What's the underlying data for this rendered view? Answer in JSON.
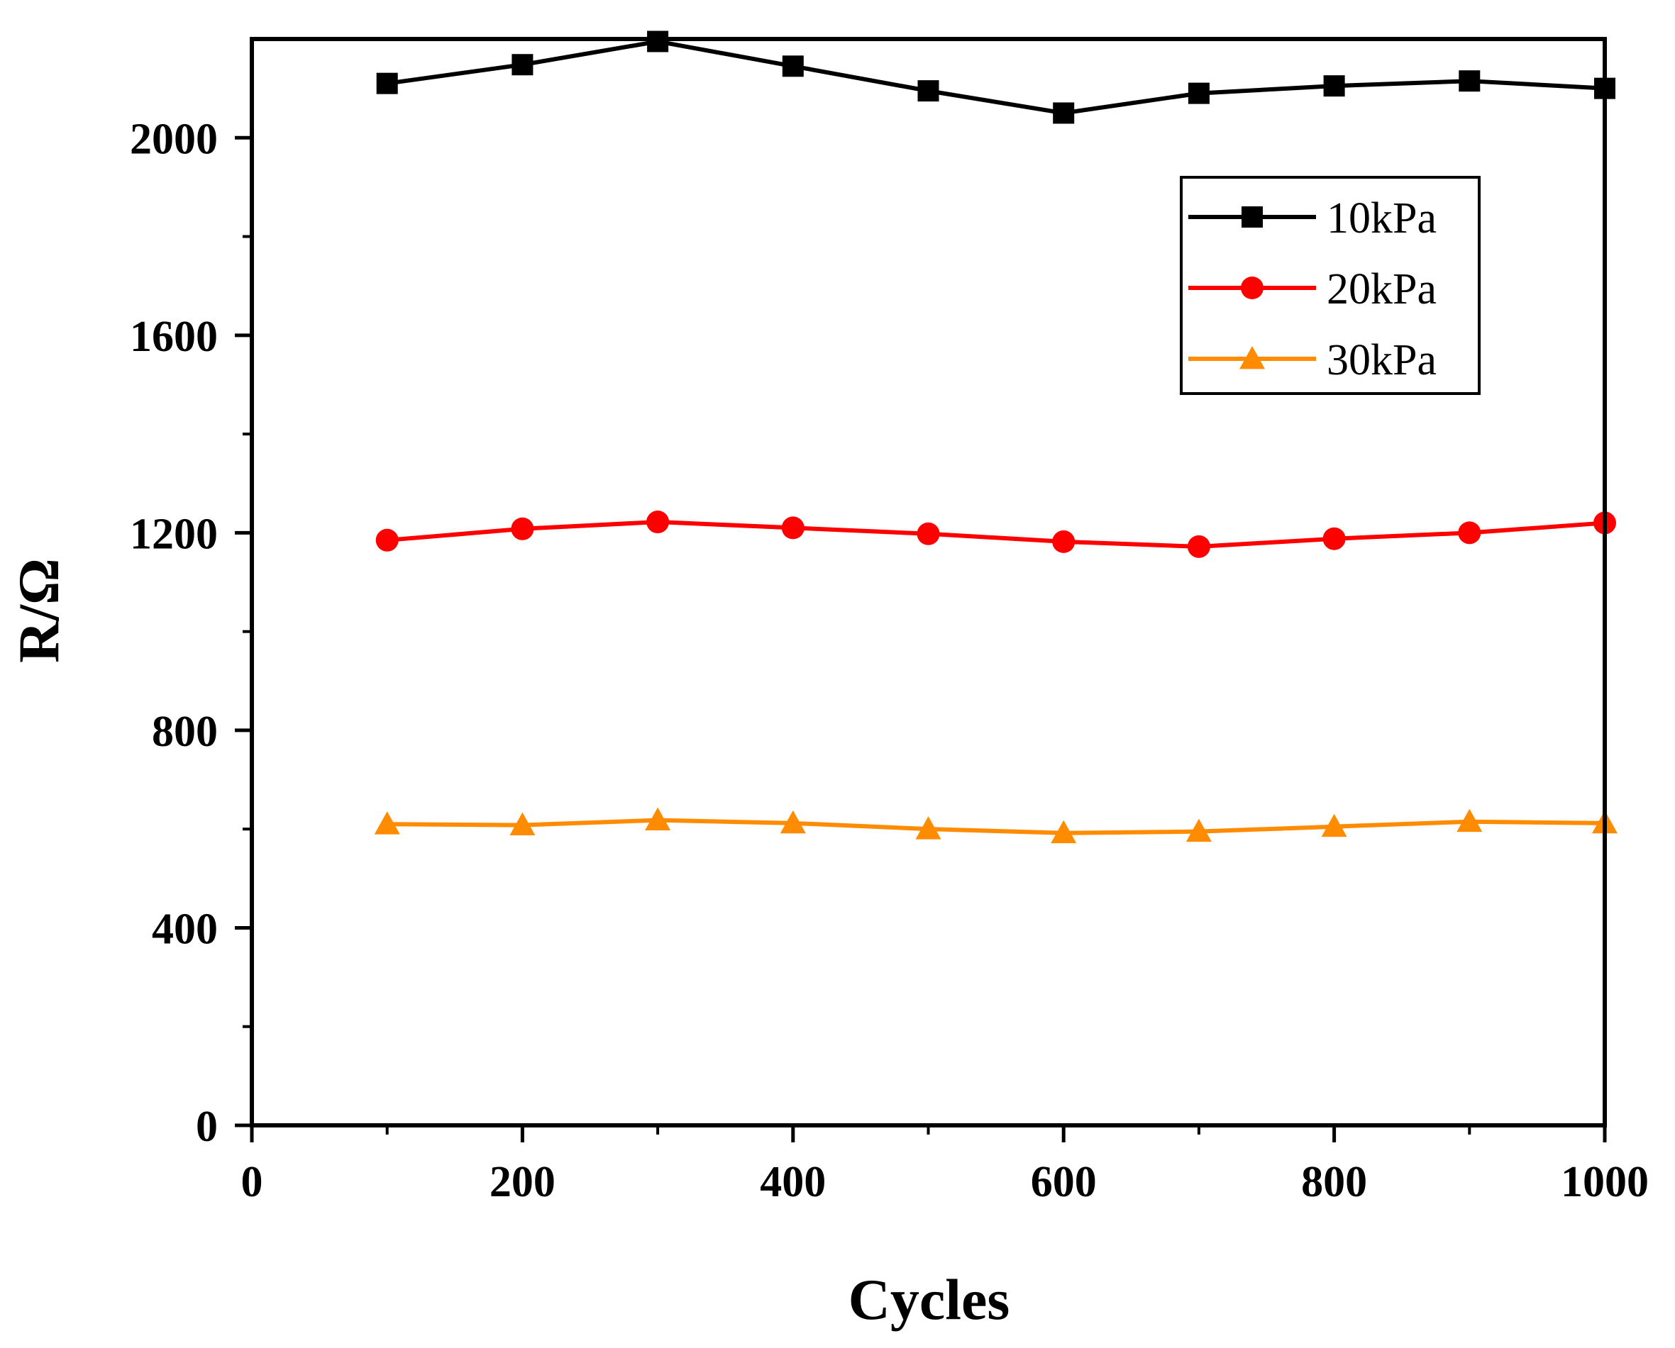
{
  "chart_data": {
    "type": "line",
    "title": "",
    "xlabel": "Cycles",
    "ylabel": "R/Ω",
    "xlim": [
      0,
      1000
    ],
    "ylim": [
      0,
      2200
    ],
    "xticks": [
      0,
      200,
      400,
      600,
      800,
      1000
    ],
    "xtick_labels": [
      "0",
      "200",
      "400",
      "600",
      "800",
      "1000"
    ],
    "yticks": [
      0,
      400,
      800,
      1200,
      1600,
      2000
    ],
    "ytick_labels": [
      "0",
      "400",
      "800",
      "1200",
      "1600",
      "2000"
    ],
    "grid": false,
    "legend_position": "top-right",
    "x": [
      100,
      200,
      300,
      400,
      500,
      600,
      700,
      800,
      900,
      1000
    ],
    "series": [
      {
        "name": "10kPa",
        "color": "#000000",
        "marker": "square",
        "values": [
          2110,
          2148,
          2195,
          2145,
          2095,
          2050,
          2090,
          2105,
          2115,
          2100
        ]
      },
      {
        "name": "20kPa",
        "color": "#ff0000",
        "marker": "circle",
        "values": [
          1185,
          1208,
          1222,
          1210,
          1198,
          1182,
          1172,
          1188,
          1200,
          1220
        ]
      },
      {
        "name": "30kPa",
        "color": "#ff8c00",
        "marker": "triangle",
        "values": [
          610,
          608,
          618,
          612,
          600,
          592,
          595,
          605,
          615,
          612
        ]
      }
    ]
  }
}
